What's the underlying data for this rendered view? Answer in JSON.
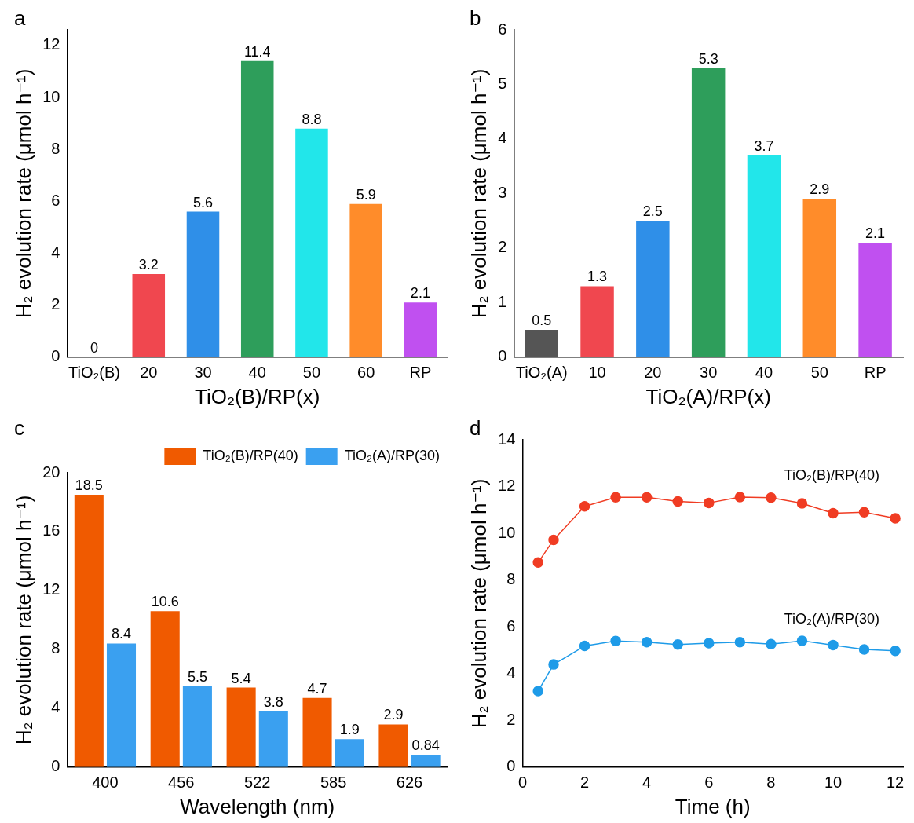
{
  "chart_data": [
    {
      "type": "bar",
      "title": "a",
      "xlabel": "TiO₂(B)/RP(x)",
      "ylabel": "H₂ evolution rate (μmol h⁻¹)",
      "categories": [
        "TiO₂(B)",
        "20",
        "30",
        "40",
        "50",
        "60",
        "RP"
      ],
      "values": [
        0,
        3.2,
        5.6,
        11.4,
        8.8,
        5.9,
        2.1
      ],
      "colors": [
        "#333333",
        "#f0474f",
        "#2f8fe8",
        "#2e9e5b",
        "#22e6ea",
        "#ff8c2a",
        "#c050f0"
      ],
      "ylim": [
        0,
        12.6
      ],
      "yticks": [
        0,
        2,
        4,
        6,
        8,
        10,
        12
      ],
      "data_labels": true,
      "grid": false,
      "legend": false
    },
    {
      "type": "bar",
      "title": "b",
      "xlabel": "TiO₂(A)/RP(x)",
      "ylabel": "H₂ evolution rate (μmol h⁻¹)",
      "categories": [
        "TiO₂(A)",
        "10",
        "20",
        "30",
        "40",
        "50",
        "RP"
      ],
      "values": [
        0.5,
        1.3,
        2.5,
        5.3,
        3.7,
        2.9,
        2.1
      ],
      "colors": [
        "#555555",
        "#f0474f",
        "#2f8fe8",
        "#2e9e5b",
        "#22e6ea",
        "#ff8c2a",
        "#c050f0"
      ],
      "ylim": [
        0,
        6
      ],
      "yticks": [
        0,
        1,
        2,
        3,
        4,
        5,
        6
      ],
      "data_labels": true,
      "grid": false,
      "legend": false
    },
    {
      "type": "bar",
      "title": "c",
      "xlabel": "Wavelength (nm)",
      "ylabel": "H₂ evolution rate (μmol h⁻¹)",
      "categories": [
        "400",
        "456",
        "522",
        "585",
        "626"
      ],
      "series": [
        {
          "name": "TiO₂(B)/RP(40)",
          "color": "#f05a00",
          "values": [
            18.5,
            10.6,
            5.4,
            4.7,
            2.9
          ]
        },
        {
          "name": "TiO₂(A)/RP(30)",
          "color": "#3aa0f0",
          "values": [
            8.4,
            5.5,
            3.8,
            1.9,
            0.84
          ]
        }
      ],
      "ylim": [
        0,
        20
      ],
      "yticks": [
        0,
        4,
        8,
        12,
        16,
        20
      ],
      "data_labels": true,
      "grid": false,
      "legend": "top right"
    },
    {
      "type": "line",
      "title": "d",
      "xlabel": "Time (h)",
      "ylabel": "H₂ evolution rate (μmol h⁻¹)",
      "x": [
        0.5,
        1,
        2,
        3,
        4,
        5,
        6,
        7,
        8,
        9,
        10,
        11,
        12
      ],
      "series": [
        {
          "name": "TiO₂(B)/RP(40)",
          "color": "#f03c23",
          "values": [
            8.75,
            9.72,
            11.15,
            11.54,
            11.54,
            11.36,
            11.3,
            11.55,
            11.52,
            11.28,
            10.86,
            10.9,
            10.64
          ]
        },
        {
          "name": "TiO₂(A)/RP(30)",
          "color": "#1e9be8",
          "values": [
            3.25,
            4.39,
            5.18,
            5.39,
            5.34,
            5.24,
            5.3,
            5.34,
            5.26,
            5.4,
            5.22,
            5.03,
            4.97
          ]
        }
      ],
      "xlim": [
        0,
        12.25
      ],
      "xticks": [
        0,
        2,
        4,
        6,
        8,
        10,
        12
      ],
      "ylim": [
        0,
        14
      ],
      "yticks": [
        0,
        2,
        4,
        6,
        8,
        10,
        12,
        14
      ],
      "marker": "circle",
      "grid": false,
      "legend": false
    }
  ]
}
